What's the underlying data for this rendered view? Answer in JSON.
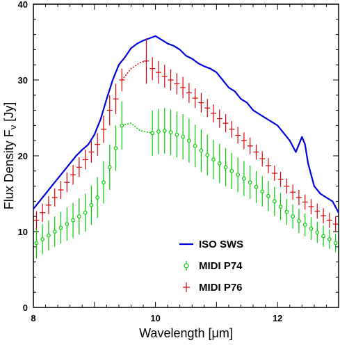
{
  "chart_data": {
    "type": "line",
    "xlabel": "Wavelength [μm]",
    "ylabel_main": "Flux Density F",
    "ylabel_sub": "ν",
    "ylabel_unit": " [Jy]",
    "xlim": [
      8,
      13
    ],
    "ylim": [
      0,
      40
    ],
    "xticks": [
      8,
      10,
      12
    ],
    "yticks": [
      0,
      10,
      20,
      30,
      40
    ],
    "xtick_labels": [
      "8",
      "10",
      "12"
    ],
    "ytick_labels": [
      "0",
      "10",
      "20",
      "30",
      "40"
    ],
    "grid": false,
    "legend_position": "lower-right",
    "series": [
      {
        "name": "ISO SWS",
        "style": "line",
        "color": "#0000dd",
        "x": [
          8.0,
          8.1,
          8.2,
          8.3,
          8.4,
          8.5,
          8.6,
          8.7,
          8.8,
          8.9,
          9.0,
          9.1,
          9.2,
          9.3,
          9.4,
          9.5,
          9.6,
          9.7,
          9.8,
          9.9,
          10.0,
          10.1,
          10.2,
          10.3,
          10.4,
          10.5,
          10.6,
          10.7,
          10.8,
          10.9,
          11.0,
          11.1,
          11.2,
          11.3,
          11.4,
          11.5,
          11.6,
          11.7,
          11.8,
          11.9,
          12.0,
          12.1,
          12.2,
          12.3,
          12.4,
          12.45,
          12.5,
          12.6,
          12.7,
          12.8,
          12.9,
          13.0
        ],
        "y": [
          13.0,
          14.0,
          15.0,
          16.0,
          17.0,
          18.0,
          19.0,
          20.0,
          20.8,
          21.5,
          22.8,
          24.8,
          27.5,
          30.0,
          32.0,
          33.0,
          34.2,
          34.8,
          35.2,
          35.5,
          35.8,
          35.3,
          34.8,
          34.5,
          34.0,
          33.2,
          32.8,
          32.2,
          31.8,
          31.5,
          31.0,
          30.0,
          29.0,
          28.5,
          27.5,
          27.0,
          26.0,
          25.5,
          25.0,
          24.5,
          24.0,
          23.0,
          22.0,
          20.5,
          22.5,
          21.5,
          19.0,
          16.0,
          15.0,
          14.5,
          14.0,
          12.5
        ]
      },
      {
        "name": "MIDI P74",
        "style": "markers",
        "color": "#00cc00",
        "marker": "circle",
        "x": [
          8.05,
          8.15,
          8.25,
          8.35,
          8.45,
          8.55,
          8.65,
          8.75,
          8.85,
          8.95,
          9.05,
          9.15,
          9.25,
          9.35,
          9.45,
          9.95,
          10.05,
          10.15,
          10.25,
          10.35,
          10.45,
          10.55,
          10.65,
          10.75,
          10.85,
          10.95,
          11.05,
          11.15,
          11.25,
          11.35,
          11.45,
          11.55,
          11.65,
          11.75,
          11.85,
          11.95,
          12.05,
          12.15,
          12.25,
          12.35,
          12.45,
          12.55,
          12.65,
          12.75,
          12.85,
          12.95
        ],
        "y": [
          8.5,
          9.0,
          9.5,
          10.0,
          10.5,
          11.0,
          11.5,
          12.0,
          12.5,
          13.5,
          14.5,
          16.5,
          18.5,
          21.0,
          24.0,
          23.0,
          23.2,
          23.3,
          23.1,
          22.8,
          22.5,
          22.0,
          21.3,
          20.7,
          20.1,
          19.5,
          19.0,
          18.5,
          18.0,
          17.5,
          17.0,
          16.5,
          15.9,
          15.3,
          14.7,
          14.0,
          13.3,
          12.6,
          12.0,
          11.4,
          10.9,
          10.4,
          9.9,
          9.4,
          9.0,
          8.5
        ],
        "yerr": [
          2.0,
          2.0,
          2.0,
          2.0,
          2.1,
          2.2,
          2.3,
          2.4,
          2.5,
          2.6,
          2.7,
          2.8,
          3.0,
          3.0,
          3.2,
          3.0,
          3.0,
          3.0,
          3.0,
          3.0,
          3.0,
          2.9,
          2.8,
          2.8,
          2.7,
          2.6,
          2.6,
          2.5,
          2.4,
          2.3,
          2.3,
          2.2,
          2.1,
          2.0,
          2.0,
          1.9,
          1.8,
          1.7,
          1.6,
          1.6,
          1.5,
          1.5,
          1.4,
          1.4,
          1.3,
          1.2
        ],
        "gap_x": [
          9.45,
          9.6,
          9.75,
          9.95
        ],
        "gap_y": [
          24.0,
          24.3,
          23.3,
          23.0
        ]
      },
      {
        "name": "MIDI P76",
        "style": "markers",
        "color": "#dd0000",
        "marker": "cross",
        "x": [
          8.05,
          8.15,
          8.25,
          8.35,
          8.45,
          8.55,
          8.65,
          8.75,
          8.85,
          8.95,
          9.05,
          9.15,
          9.25,
          9.35,
          9.45,
          9.85,
          9.95,
          10.05,
          10.15,
          10.25,
          10.35,
          10.45,
          10.55,
          10.65,
          10.75,
          10.85,
          10.95,
          11.05,
          11.15,
          11.25,
          11.35,
          11.45,
          11.55,
          11.65,
          11.75,
          11.85,
          11.95,
          12.05,
          12.15,
          12.25,
          12.35,
          12.45,
          12.55,
          12.65,
          12.75,
          12.85,
          12.95
        ],
        "y": [
          11.5,
          12.5,
          13.5,
          14.5,
          15.5,
          16.5,
          17.5,
          18.5,
          19.5,
          20.5,
          21.5,
          23.5,
          26.0,
          27.5,
          30.0,
          32.5,
          31.5,
          31.0,
          30.5,
          30.0,
          29.5,
          29.0,
          28.3,
          27.6,
          27.0,
          26.3,
          25.6,
          24.9,
          24.3,
          23.5,
          22.7,
          22.0,
          21.3,
          20.5,
          19.6,
          18.7,
          17.7,
          16.9,
          16.0,
          15.2,
          14.5,
          13.9,
          13.3,
          12.7,
          12.1,
          11.5,
          11.0
        ],
        "yerr": [
          1.2,
          1.2,
          1.2,
          1.2,
          1.2,
          1.3,
          1.3,
          1.3,
          1.3,
          1.4,
          1.5,
          1.8,
          2.0,
          2.0,
          1.5,
          3.0,
          1.5,
          1.5,
          1.5,
          1.4,
          1.4,
          1.4,
          1.3,
          1.3,
          1.3,
          1.2,
          1.2,
          1.2,
          1.2,
          1.1,
          1.1,
          1.1,
          1.1,
          1.0,
          1.0,
          1.0,
          1.0,
          1.0,
          1.0,
          1.0,
          1.0,
          1.0,
          1.0,
          1.0,
          1.0,
          1.0,
          1.0
        ],
        "gap_x": [
          9.45,
          9.6,
          9.75,
          9.85
        ],
        "gap_y": [
          30.0,
          31.5,
          32.3,
          32.5
        ]
      }
    ],
    "legend": [
      {
        "label": "ISO SWS",
        "series": 0
      },
      {
        "label": "MIDI P74",
        "series": 1
      },
      {
        "label": "MIDI P76",
        "series": 2
      }
    ]
  }
}
